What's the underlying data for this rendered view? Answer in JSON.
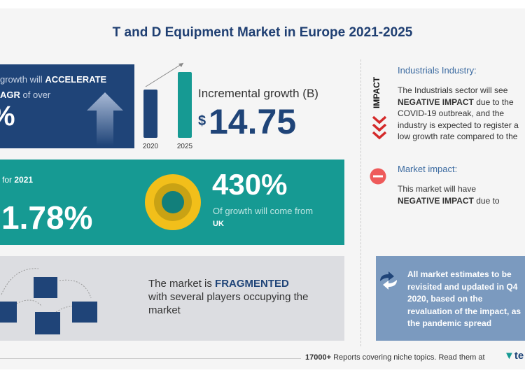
{
  "title": "T and D Equipment Market in Europe 2021-2025",
  "cagr_box": {
    "line1_pre": "growth will",
    "line1_bold": "ACCELERATE",
    "line2_bold": "AGR",
    "line2_post": "of over",
    "value_fragment": "%"
  },
  "bars": {
    "labels": [
      "2020",
      "2025"
    ],
    "colors": [
      "#1f4478",
      "#169a93"
    ]
  },
  "incremental": {
    "label": "Incremental growth (B)",
    "currency": "$",
    "value": "14.75"
  },
  "yoy": {
    "label_pre": "for",
    "year": "2021",
    "value": "1.78%"
  },
  "region": {
    "value": "430%",
    "text": "Of growth will come from",
    "country": "UK"
  },
  "fragment": {
    "pre": "The market is",
    "bold": "FRAGMENTED",
    "post": "with several players occupying the market"
  },
  "impact": {
    "vertical_label": "IMPACT",
    "industry_heading": "Industrials Industry:",
    "industry_pre": "The Industrials sector will see",
    "industry_bold": "NEGATIVE IMPACT",
    "industry_post": "due to the COVID-19 outbreak, and the industry is expected to register a low growth rate compared to the global GDP",
    "market_heading": "Market impact:",
    "market_pre": "This market will have",
    "market_bold": "NEGATIVE IMPACT",
    "market_post": "due to pandemic"
  },
  "note": "All market estimates to be revisited and updated in Q4 2020, based on the revaluation of the impact, as the pandemic spread plateaus",
  "footer": {
    "bold": "17000+",
    "text": "Reports covering niche topics. Read them at",
    "brand": "te"
  }
}
